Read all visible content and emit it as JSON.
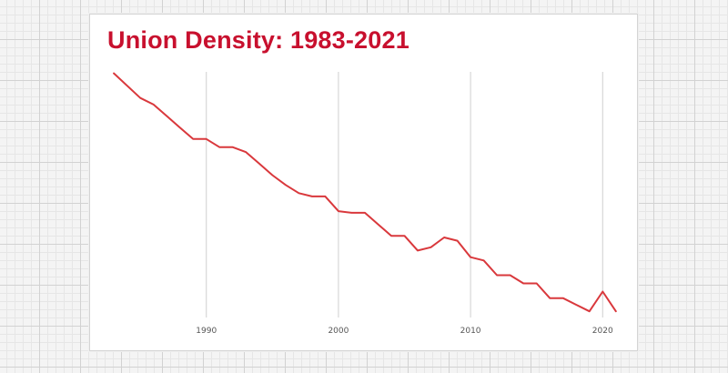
{
  "chart_data": {
    "type": "line",
    "title": "Union Density: 1983-2021",
    "xlabel": "",
    "ylabel": "",
    "x": [
      1983,
      1985,
      1986,
      1987,
      1988,
      1989,
      1990,
      1991,
      1992,
      1993,
      1994,
      1995,
      1996,
      1997,
      1998,
      1999,
      2000,
      2001,
      2002,
      2003,
      2004,
      2005,
      2006,
      2007,
      2008,
      2009,
      2010,
      2011,
      2012,
      2013,
      2014,
      2015,
      2016,
      2017,
      2018,
      2019,
      2020,
      2021
    ],
    "series": [
      {
        "values": [
          20.1,
          18.6,
          18.2,
          17.5,
          16.8,
          16.1,
          16.1,
          15.6,
          15.6,
          15.3,
          14.6,
          13.9,
          13.3,
          12.8,
          12.6,
          12.6,
          11.7,
          11.6,
          11.6,
          10.9,
          10.2,
          10.2,
          9.3,
          9.5,
          10.1,
          9.9,
          8.9,
          8.7,
          7.8,
          7.8,
          7.3,
          7.3,
          6.4,
          6.4,
          6.0,
          5.6,
          6.8,
          5.6
        ]
      }
    ],
    "xticks": [
      1990,
      2000,
      2010,
      2020
    ],
    "xlim": [
      1981.2,
      2022.6
    ],
    "ylim": [
      5.0,
      20.8
    ],
    "grid": "vertical",
    "legend": "none",
    "line_color": "#d9383c",
    "title_color": "#c8102e",
    "grid_color": "#cfcfcf"
  }
}
